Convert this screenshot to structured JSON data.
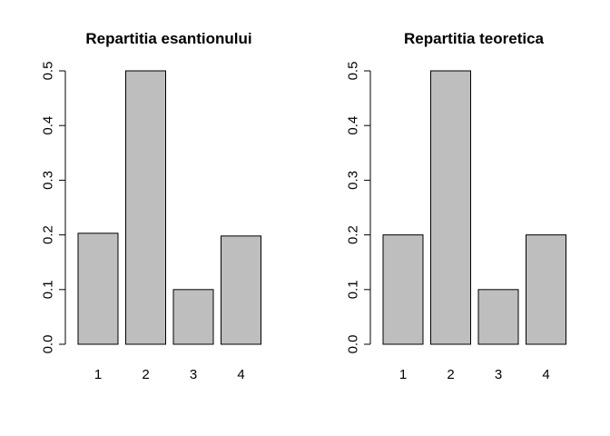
{
  "chart_data": [
    {
      "type": "bar",
      "title": "Repartitia esantionului",
      "xlabel": "",
      "ylabel": "",
      "categories": [
        "1",
        "2",
        "3",
        "4"
      ],
      "values": [
        0.203,
        0.5,
        0.1,
        0.198
      ],
      "ylim": [
        0,
        0.5
      ],
      "yticks": [
        "0.0",
        "0.1",
        "0.2",
        "0.3",
        "0.4",
        "0.5"
      ],
      "grid": false,
      "bar_color": "#bebebe"
    },
    {
      "type": "bar",
      "title": "Repartitia teoretica",
      "xlabel": "",
      "ylabel": "",
      "categories": [
        "1",
        "2",
        "3",
        "4"
      ],
      "values": [
        0.2,
        0.5,
        0.1,
        0.2
      ],
      "ylim": [
        0,
        0.5
      ],
      "yticks": [
        "0.0",
        "0.1",
        "0.2",
        "0.3",
        "0.4",
        "0.5"
      ],
      "grid": false,
      "bar_color": "#bebebe"
    }
  ]
}
